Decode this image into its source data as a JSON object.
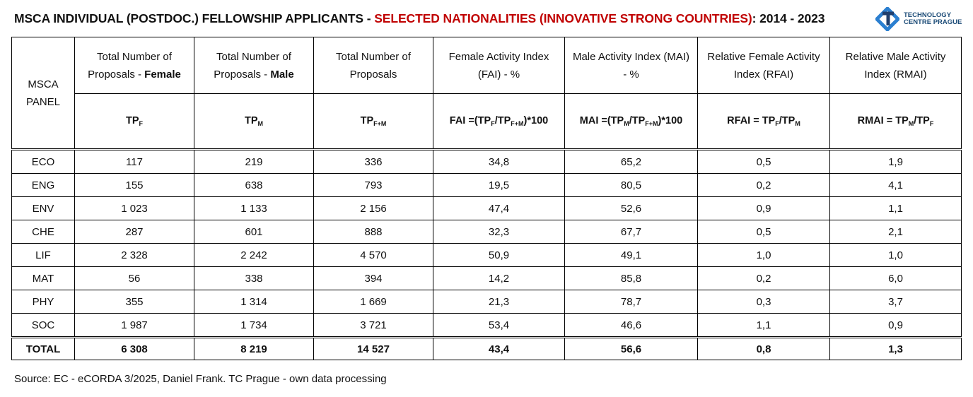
{
  "title": {
    "part1": "MSCA INDIVIDUAL (POSTDOC.) FELLOWSHIP APPLICANTS  - ",
    "part2": "SELECTED NATIONALITIES (INNOVATIVE STRONG COUNTRIES)",
    "part3": ": 2014 - 2023"
  },
  "logo": {
    "line1": "TECHNOLOGY",
    "line2": "CENTRE PRAGUE",
    "color": "#1f6fb5"
  },
  "source": "Source: EC - eCORDA 3/2025, Daniel Frank. TC Prague - own data processing",
  "chart_data": {
    "type": "table",
    "panel_header": "MSCA PANEL",
    "headers": [
      {
        "pre": "Total Number of Proposals - ",
        "bold": "Female"
      },
      {
        "pre": "Total Number of Proposals - ",
        "bold": "Male"
      },
      {
        "pre": "Total Number of Proposals",
        "bold": ""
      },
      {
        "pre": "Female Activity Index (FAI) - %",
        "bold": ""
      },
      {
        "pre": "Male Activity Index (MAI) - %",
        "bold": ""
      },
      {
        "pre": "Relative Female Activity Index (RFAI)",
        "bold": ""
      },
      {
        "pre": "Relative Male Activity Index (RMAI)",
        "bold": ""
      }
    ],
    "formulas": [
      [
        [
          "TP",
          ""
        ],
        [
          "F",
          "s"
        ]
      ],
      [
        [
          "TP",
          ""
        ],
        [
          "M",
          "s"
        ]
      ],
      [
        [
          "TP",
          ""
        ],
        [
          "F+M",
          "s"
        ]
      ],
      [
        [
          "FAI =(TP",
          ""
        ],
        [
          "F",
          "s"
        ],
        [
          "/TP",
          ""
        ],
        [
          "F+M",
          "s"
        ],
        [
          ")*100",
          ""
        ]
      ],
      [
        [
          "MAI =(TP",
          ""
        ],
        [
          "M",
          "s"
        ],
        [
          "/TP",
          ""
        ],
        [
          "F+M",
          "s"
        ],
        [
          ")*100",
          ""
        ]
      ],
      [
        [
          "RFAI = TP",
          ""
        ],
        [
          "F",
          "s"
        ],
        [
          "/TP",
          ""
        ],
        [
          "M",
          "s"
        ]
      ],
      [
        [
          "RMAI = TP",
          ""
        ],
        [
          "M",
          "s"
        ],
        [
          "/TP",
          ""
        ],
        [
          "F",
          "s"
        ]
      ]
    ],
    "rows": [
      [
        "ECO",
        "117",
        "219",
        "336",
        "34,8",
        "65,2",
        "0,5",
        "1,9"
      ],
      [
        "ENG",
        "155",
        "638",
        "793",
        "19,5",
        "80,5",
        "0,2",
        "4,1"
      ],
      [
        "ENV",
        "1 023",
        "1 133",
        "2 156",
        "47,4",
        "52,6",
        "0,9",
        "1,1"
      ],
      [
        "CHE",
        "287",
        "601",
        "888",
        "32,3",
        "67,7",
        "0,5",
        "2,1"
      ],
      [
        "LIF",
        "2 328",
        "2 242",
        "4 570",
        "50,9",
        "49,1",
        "1,0",
        "1,0"
      ],
      [
        "MAT",
        "56",
        "338",
        "394",
        "14,2",
        "85,8",
        "0,2",
        "6,0"
      ],
      [
        "PHY",
        "355",
        "1 314",
        "1 669",
        "21,3",
        "78,7",
        "0,3",
        "3,7"
      ],
      [
        "SOC",
        "1 987",
        "1 734",
        "3 721",
        "53,4",
        "46,6",
        "1,1",
        "0,9"
      ]
    ],
    "total": [
      "TOTAL",
      "6 308",
      "8 219",
      "14 527",
      "43,4",
      "56,6",
      "0,8",
      "1,3"
    ]
  }
}
